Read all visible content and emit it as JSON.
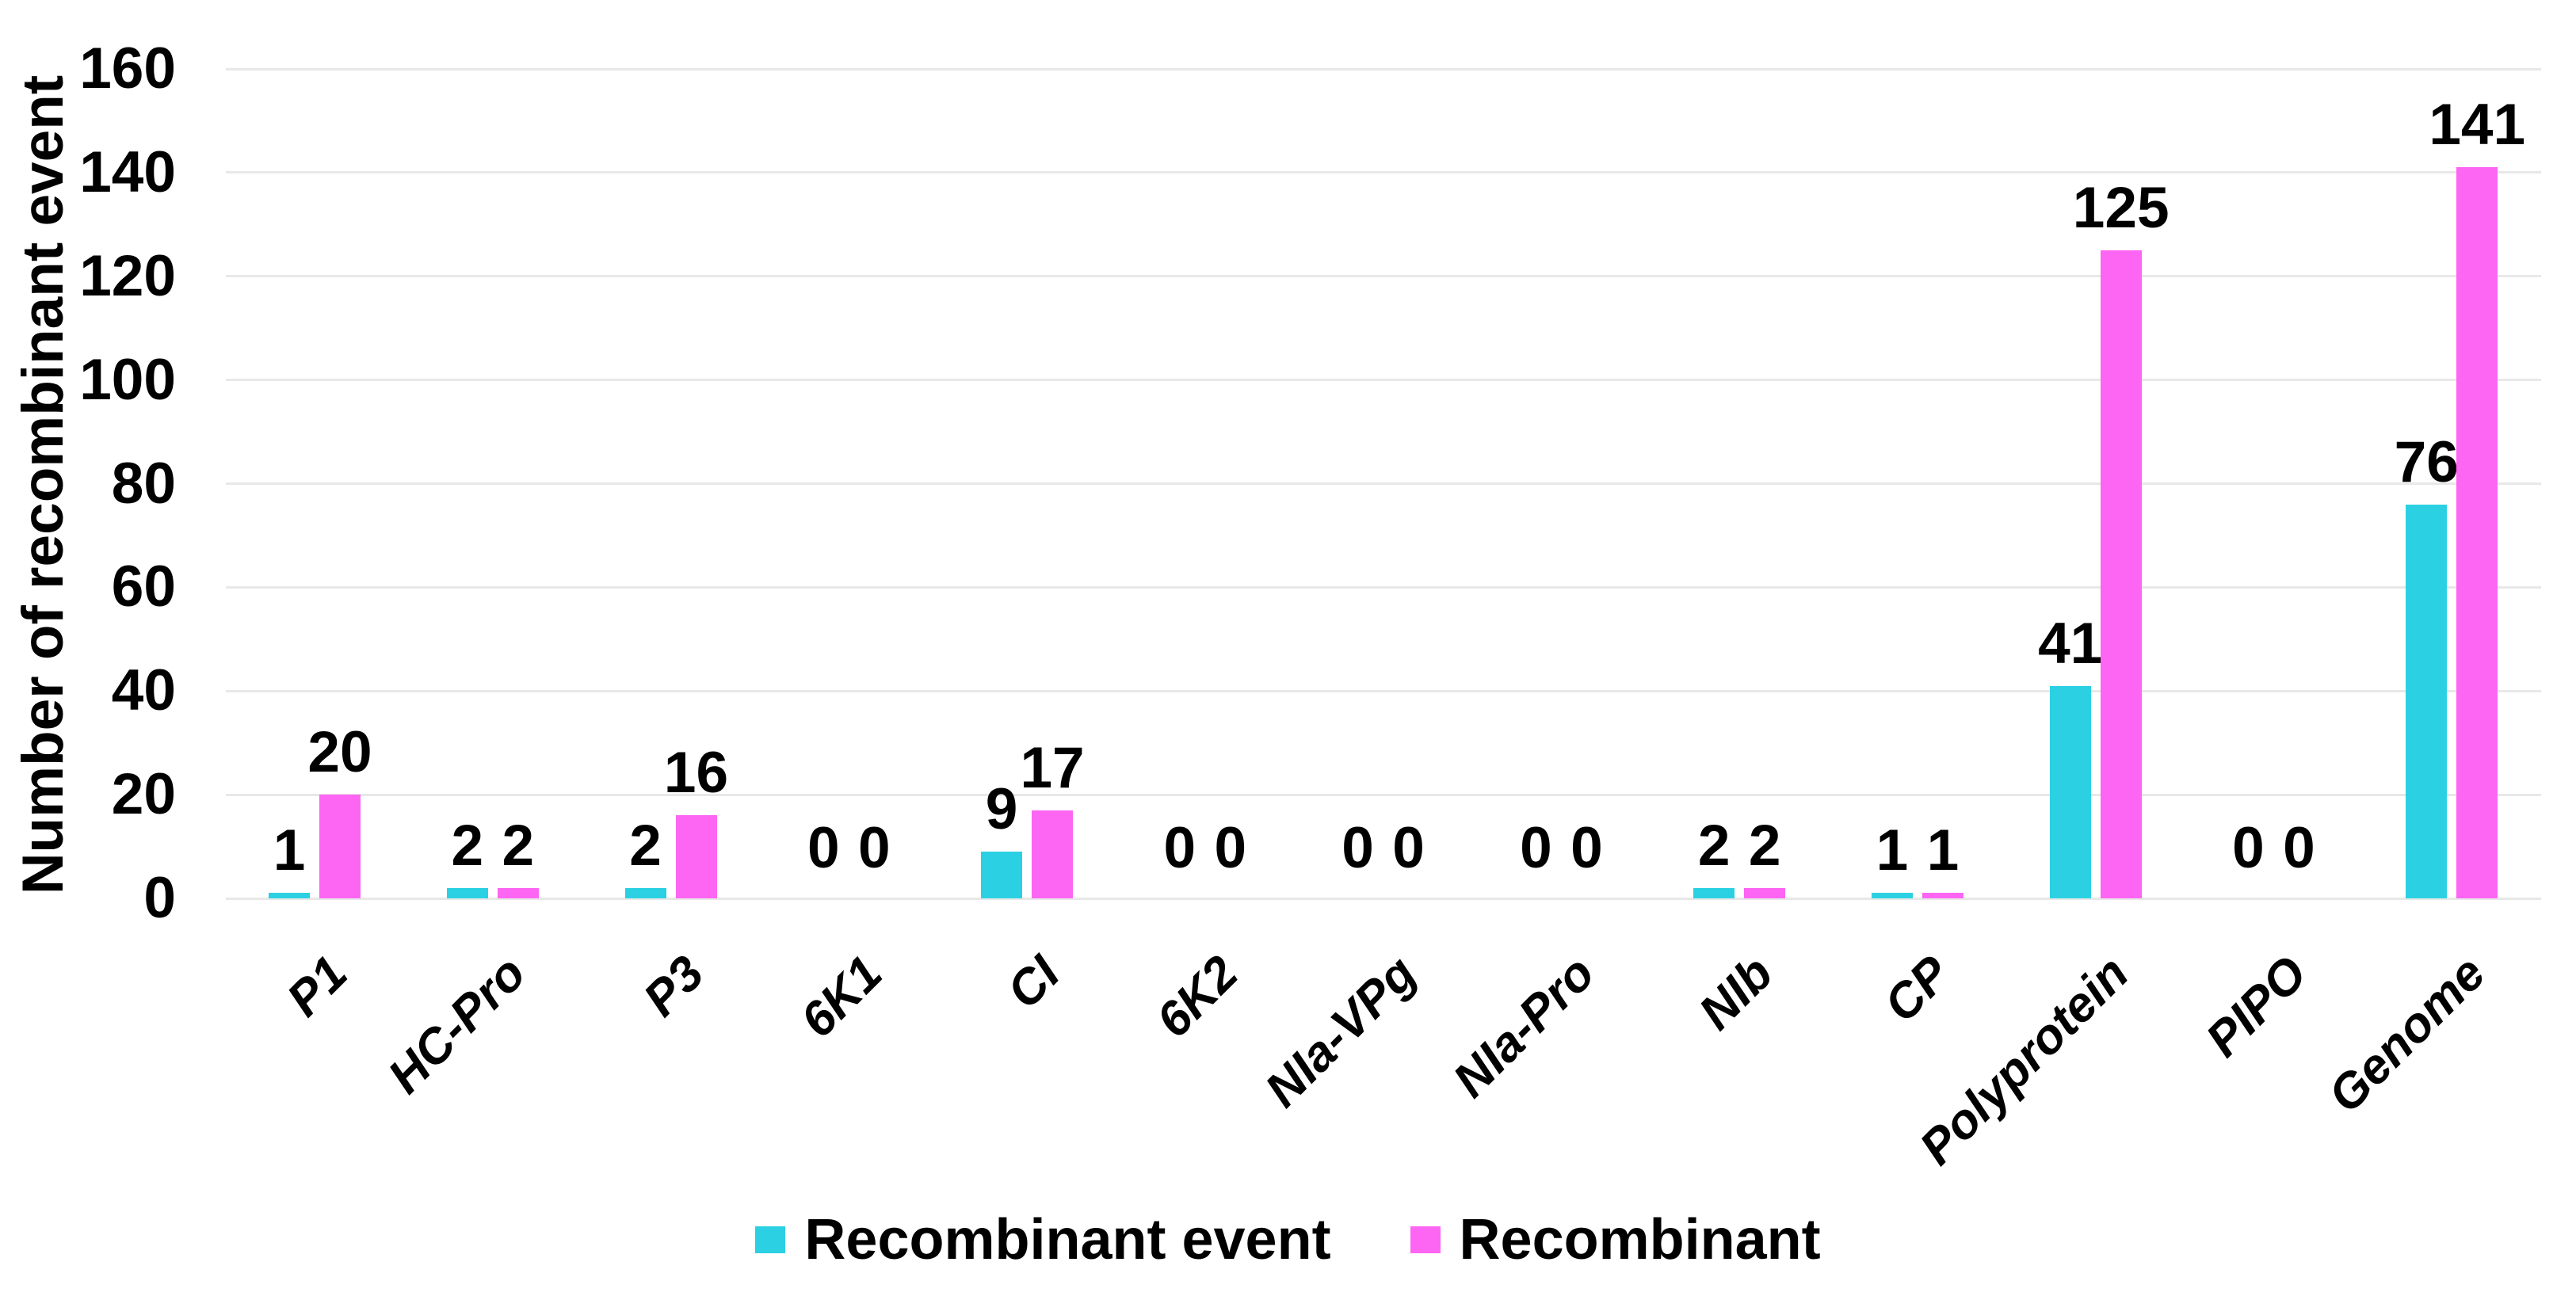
{
  "chart_data": {
    "type": "bar",
    "title": "",
    "xlabel": "",
    "ylabel": "Number of recombinant event",
    "ylim": [
      0,
      160
    ],
    "ytick_step": 20,
    "yticks": [
      0,
      20,
      40,
      60,
      80,
      100,
      120,
      140,
      160
    ],
    "grid": true,
    "gridline_color": "#E8E8E8",
    "background_color": "#FFFFFF",
    "text_color": "#000000",
    "legend_position": "bottom",
    "bar_value_labels": true,
    "categories": [
      "P1",
      "HC-Pro",
      "P3",
      "6K1",
      "CI",
      "6K2",
      "NIa-VPg",
      "NIa-Pro",
      "NIb",
      "CP",
      "Polyprotein",
      "PIPO",
      "Genome"
    ],
    "series": [
      {
        "name": "Recombinant event",
        "color": "#2BD1E2",
        "values": [
          1,
          2,
          2,
          0,
          9,
          0,
          0,
          0,
          2,
          1,
          41,
          0,
          76
        ]
      },
      {
        "name": "Recombinant",
        "color": "#FD65F3",
        "values": [
          20,
          2,
          16,
          0,
          17,
          0,
          0,
          0,
          2,
          1,
          125,
          0,
          141
        ]
      }
    ]
  }
}
